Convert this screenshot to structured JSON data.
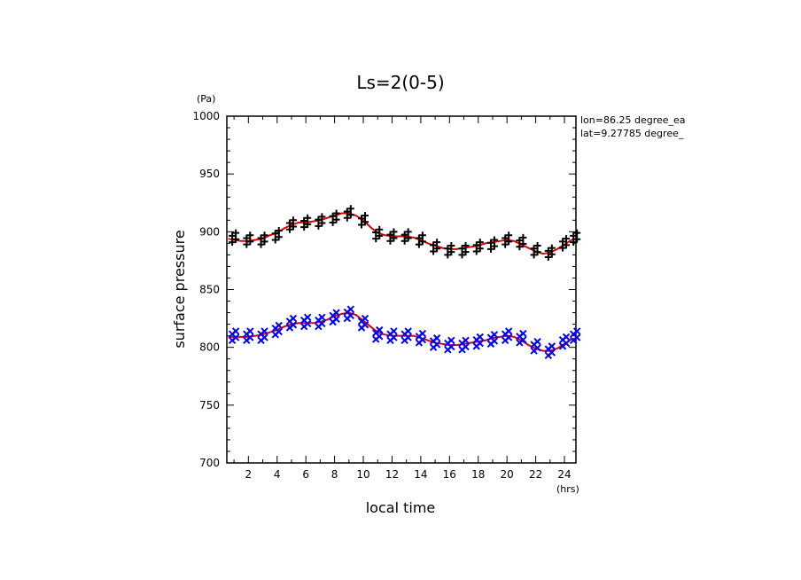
{
  "chart_data": {
    "type": "scatter",
    "title": "Ls=2(0-5)",
    "xlabel": "local time",
    "ylabel": "surface pressure",
    "x_unit": "(hrs)",
    "y_unit": "(Pa)",
    "xlim": [
      0.5,
      24.8
    ],
    "ylim": [
      700,
      1000
    ],
    "x_ticks": [
      2,
      4,
      6,
      8,
      10,
      12,
      14,
      16,
      18,
      20,
      22,
      24
    ],
    "y_ticks": [
      700,
      750,
      800,
      850,
      900,
      950,
      1000
    ],
    "annotations": [
      "lon=86.25 degree_ea",
      "lat=9.27785 degree_"
    ],
    "grid": false,
    "series": [
      {
        "marker": "plus",
        "color": "#000000",
        "x": [
          1,
          2,
          3,
          4,
          5,
          6,
          7,
          8,
          9,
          10,
          11,
          12,
          13,
          14,
          15,
          16,
          17,
          18,
          19,
          20,
          21,
          22,
          23,
          24,
          24.75
        ],
        "y": [
          895,
          893,
          893,
          897,
          906,
          908,
          909,
          912,
          916,
          910,
          898,
          896,
          896,
          893,
          887,
          884,
          884,
          887,
          889,
          893,
          891,
          884,
          882,
          890,
          895
        ]
      },
      {
        "marker": "x",
        "color": "#0000ff",
        "x": [
          1,
          2,
          3,
          4,
          5,
          6,
          7,
          8,
          9,
          10,
          11,
          12,
          13,
          14,
          15,
          16,
          17,
          18,
          19,
          20,
          21,
          22,
          23,
          24,
          24.75
        ],
        "y": [
          810,
          810,
          810,
          815,
          821,
          822,
          822,
          826,
          829,
          821,
          811,
          810,
          810,
          808,
          804,
          802,
          802,
          805,
          807,
          810,
          808,
          801,
          797,
          805,
          810
        ]
      },
      {
        "marker": "line",
        "color": "#e00000",
        "x": [
          0.6,
          1,
          1.5,
          2,
          2.5,
          3,
          3.5,
          4,
          4.5,
          5,
          5.5,
          6,
          6.5,
          7,
          7.5,
          8,
          8.5,
          9,
          9.5,
          10,
          10.5,
          11,
          11.5,
          12,
          12.5,
          13,
          13.5,
          14,
          14.5,
          15,
          15.5,
          16,
          16.5,
          17,
          17.5,
          18,
          18.5,
          19,
          19.5,
          20,
          20.5,
          21,
          21.5,
          22,
          22.5,
          23,
          23.5,
          24,
          24.5,
          24.8
        ],
        "y": [
          894,
          893,
          892,
          892,
          893,
          894,
          897,
          899,
          903,
          906,
          908,
          908,
          909,
          910,
          912,
          914,
          916,
          916,
          914,
          910,
          904,
          899,
          897,
          896,
          896,
          896,
          895,
          893,
          890,
          888,
          886,
          885,
          885,
          886,
          887,
          888,
          890,
          891,
          892,
          893,
          892,
          889,
          886,
          883,
          881,
          882,
          885,
          889,
          893,
          894
        ]
      },
      {
        "marker": "line",
        "color": "#e00000",
        "x": [
          0.6,
          1,
          1.5,
          2,
          2.5,
          3,
          3.5,
          4,
          4.5,
          5,
          5.5,
          6,
          6.5,
          7,
          7.5,
          8,
          8.5,
          9,
          9.5,
          10,
          10.5,
          11,
          11.5,
          12,
          12.5,
          13,
          13.5,
          14,
          14.5,
          15,
          15.5,
          16,
          16.5,
          17,
          17.5,
          18,
          18.5,
          19,
          19.5,
          20,
          20.5,
          21,
          21.5,
          22,
          22.5,
          23,
          23.5,
          24,
          24.5,
          24.8
        ],
        "y": [
          809,
          809,
          809,
          809,
          810,
          811,
          813,
          815,
          818,
          820,
          821,
          821,
          821,
          822,
          824,
          827,
          829,
          830,
          828,
          823,
          818,
          813,
          811,
          810,
          810,
          810,
          810,
          808,
          806,
          804,
          803,
          802,
          802,
          803,
          804,
          805,
          806,
          808,
          809,
          810,
          809,
          806,
          802,
          799,
          797,
          797,
          799,
          803,
          807,
          808
        ]
      }
    ]
  }
}
